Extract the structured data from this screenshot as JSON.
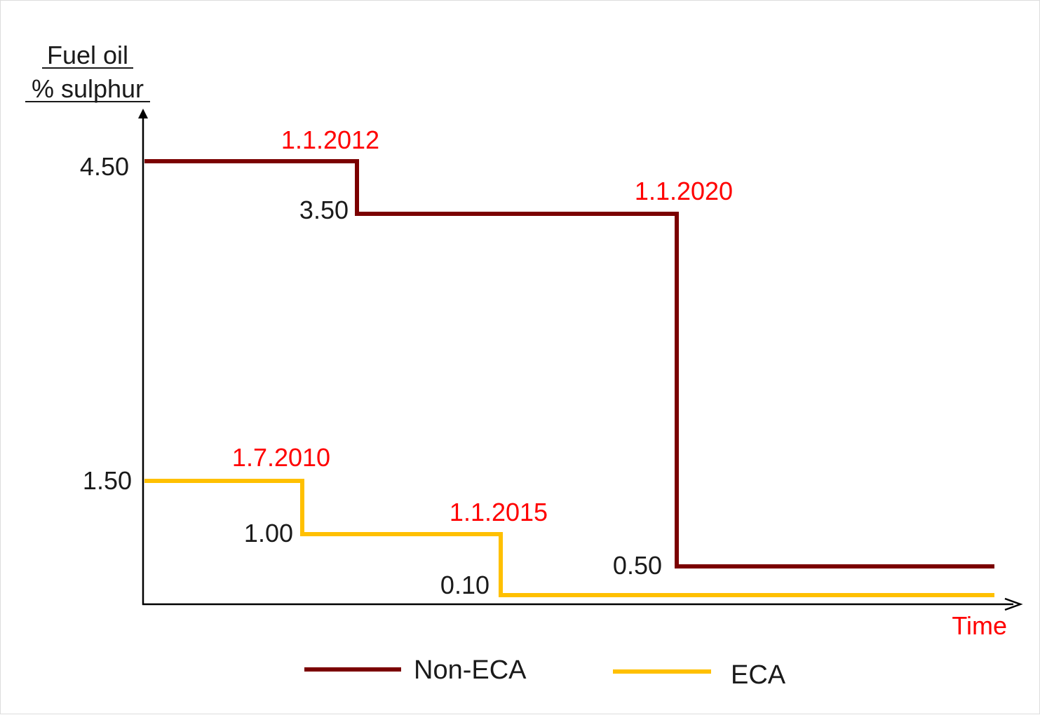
{
  "chart_data": {
    "type": "line",
    "ylabel_lines": [
      "Fuel oil",
      "% sulphur"
    ],
    "xlabel": "Time",
    "colors": {
      "axis": "#000000",
      "tick_text": "#1a1a1a",
      "date_text": "#ff0000",
      "non_eca": "#7b0000",
      "eca": "#ffc000"
    },
    "series": [
      {
        "name": "Non-ECA",
        "key": "non_eca",
        "start_value": "4.50",
        "steps": [
          {
            "date": "1.1.2012",
            "value": "3.50"
          },
          {
            "date": "1.1.2020",
            "value": "0.50"
          }
        ]
      },
      {
        "name": "ECA",
        "key": "eca",
        "start_value": "1.50",
        "steps": [
          {
            "date": "1.7.2010",
            "value": "1.00"
          },
          {
            "date": "1.1.2015",
            "value": "0.10"
          }
        ]
      }
    ]
  }
}
